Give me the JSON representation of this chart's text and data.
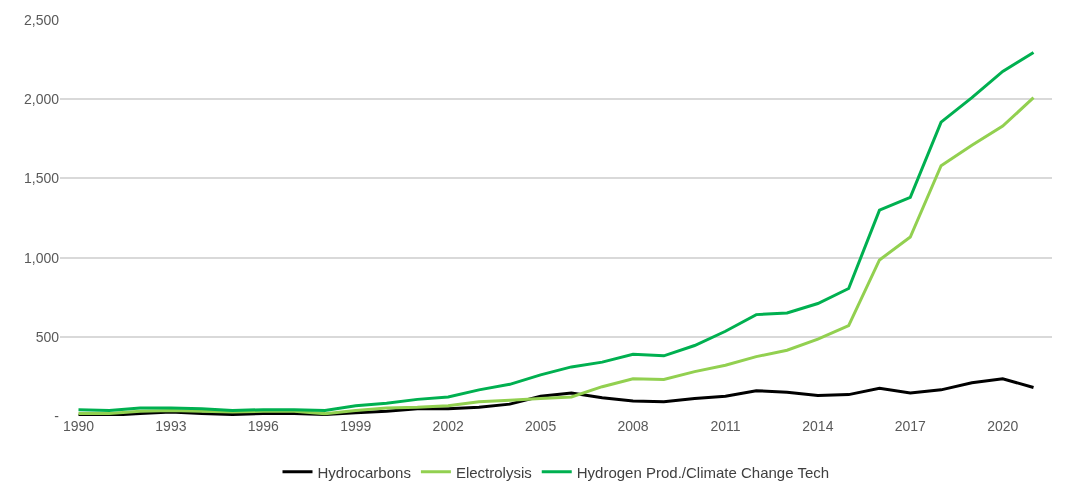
{
  "chart_data": {
    "type": "line",
    "x": [
      1990,
      1991,
      1992,
      1993,
      1994,
      1995,
      1996,
      1997,
      1998,
      1999,
      2000,
      2001,
      2002,
      2003,
      2004,
      2005,
      2006,
      2007,
      2008,
      2009,
      2010,
      2011,
      2012,
      2013,
      2014,
      2015,
      2016,
      2017,
      2018,
      2019,
      2020,
      2021
    ],
    "series": [
      {
        "name": "Hydrocarbons",
        "color": "#000000",
        "values": [
          5,
          5,
          15,
          25,
          15,
          10,
          15,
          15,
          10,
          20,
          30,
          45,
          45,
          55,
          75,
          125,
          145,
          115,
          95,
          90,
          110,
          125,
          160,
          150,
          130,
          135,
          175,
          145,
          165,
          210,
          235,
          180
        ]
      },
      {
        "name": "Electrolysis",
        "color": "#92d050",
        "values": [
          15,
          15,
          30,
          35,
          30,
          25,
          30,
          30,
          15,
          35,
          50,
          55,
          65,
          90,
          100,
          110,
          120,
          185,
          235,
          230,
          280,
          320,
          375,
          415,
          485,
          570,
          985,
          1130,
          1580,
          1710,
          1830,
          2010
        ]
      },
      {
        "name": "Hydrogen Prod./Climate Change Tech",
        "color": "#00b050",
        "values": [
          40,
          35,
          50,
          50,
          45,
          35,
          40,
          40,
          35,
          65,
          80,
          105,
          120,
          165,
          200,
          260,
          310,
          340,
          390,
          380,
          445,
          535,
          640,
          650,
          710,
          805,
          1300,
          1380,
          1855,
          2010,
          2175,
          2295
        ]
      }
    ],
    "xlim": [
      1989.4,
      2021.6
    ],
    "xticks": [
      1990,
      1993,
      1996,
      1999,
      2002,
      2005,
      2008,
      2011,
      2014,
      2017,
      2020
    ],
    "ylim": [
      0,
      2500
    ],
    "yticks": [
      {
        "value": 0,
        "label": "-"
      },
      {
        "value": 500,
        "label": "500"
      },
      {
        "value": 1000,
        "label": "1,000"
      },
      {
        "value": 1500,
        "label": "1,500"
      },
      {
        "value": 2000,
        "label": "2,000"
      },
      {
        "value": 2500,
        "label": "2,500"
      }
    ],
    "grid": "y",
    "legend": "bottom",
    "marker": "none",
    "line_style": "solid"
  }
}
